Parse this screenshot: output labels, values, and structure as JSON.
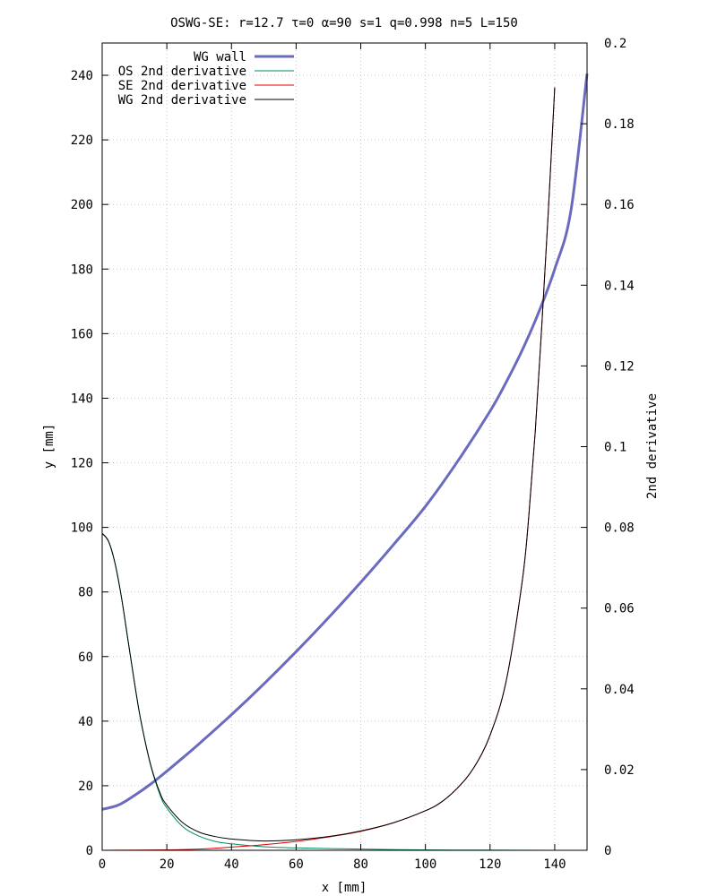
{
  "chart_data": {
    "type": "line",
    "title": "OSWG-SE: r=12.7 τ=0 α=90 s=1 q=0.998 n=5 L=150",
    "xlabel": "x [mm]",
    "ylabel": "y [mm]",
    "y2label": "2nd derivative",
    "xlim": [
      0,
      150
    ],
    "ylim": [
      0,
      250
    ],
    "y2lim": [
      0,
      0.2
    ],
    "xticks": [
      0,
      20,
      40,
      60,
      80,
      100,
      120,
      140
    ],
    "yticks": [
      0,
      20,
      40,
      60,
      80,
      100,
      120,
      140,
      160,
      180,
      200,
      220,
      240
    ],
    "y2ticks": [
      0,
      0.02,
      0.04,
      0.06,
      0.08,
      0.1,
      0.12,
      0.14,
      0.16,
      0.18,
      0.2
    ],
    "xtick_labels": [
      "0",
      "20",
      "40",
      "60",
      "80",
      "100",
      "120",
      "140"
    ],
    "ytick_labels": [
      "0",
      "20",
      "40",
      "60",
      "80",
      "100",
      "120",
      "140",
      "160",
      "180",
      "200",
      "220",
      "240"
    ],
    "y2tick_labels": [
      "0",
      "0.02",
      "0.04",
      "0.06",
      "0.08",
      "0.1",
      "0.12",
      "0.14",
      "0.16",
      "0.18",
      "0.2"
    ],
    "grid": true,
    "legend_position": "top-left",
    "series": [
      {
        "name": "WG wall",
        "axis": "y",
        "color": "#6a6abf",
        "x": [
          0,
          5,
          10,
          15,
          20,
          25,
          30,
          40,
          50,
          60,
          70,
          80,
          90,
          100,
          110,
          120,
          125,
          130,
          135,
          140,
          145,
          150
        ],
        "y": [
          12.7,
          14.0,
          17.0,
          20.5,
          24.5,
          28.7,
          33.0,
          42.0,
          51.5,
          61.5,
          72.0,
          83.0,
          94.5,
          106.5,
          120.5,
          136.0,
          145.0,
          155.0,
          166.5,
          180.0,
          198.0,
          240.5
        ]
      },
      {
        "name": "OS 2nd derivative",
        "axis": "y2",
        "color": "#008b60",
        "x": [
          0,
          2,
          4,
          6,
          8,
          10,
          12,
          15,
          18,
          20,
          25,
          30,
          35,
          40,
          50,
          60,
          80,
          100,
          120,
          140
        ],
        "y": [
          0.0785,
          0.0765,
          0.071,
          0.0625,
          0.052,
          0.0415,
          0.032,
          0.021,
          0.0135,
          0.0105,
          0.0058,
          0.0035,
          0.0022,
          0.0016,
          0.0009,
          0.0006,
          0.0003,
          0.0001,
          5e-05,
          0.0
        ]
      },
      {
        "name": "SE 2nd derivative",
        "axis": "y2",
        "color": "#e00000",
        "x": [
          0,
          20,
          30,
          40,
          50,
          60,
          70,
          80,
          90,
          100,
          105,
          110,
          115,
          120,
          125,
          130,
          132,
          134,
          136,
          138,
          140
        ],
        "y": [
          0.0,
          0.0001,
          0.0003,
          0.0008,
          0.0014,
          0.0022,
          0.0033,
          0.0047,
          0.0068,
          0.0098,
          0.012,
          0.0155,
          0.0205,
          0.0285,
          0.042,
          0.067,
          0.083,
          0.104,
          0.13,
          0.158,
          0.189
        ]
      },
      {
        "name": "WG 2nd derivative",
        "axis": "y2",
        "color": "#000000",
        "x": [
          0,
          2,
          4,
          6,
          8,
          10,
          12,
          15,
          18,
          20,
          25,
          30,
          35,
          40,
          50,
          60,
          70,
          80,
          90,
          100,
          105,
          110,
          115,
          120,
          125,
          130,
          132,
          134,
          136,
          138,
          140
        ],
        "y": [
          0.0785,
          0.0765,
          0.071,
          0.0625,
          0.052,
          0.0415,
          0.032,
          0.0212,
          0.014,
          0.0112,
          0.0068,
          0.0045,
          0.0034,
          0.0028,
          0.0023,
          0.0026,
          0.0034,
          0.0048,
          0.0068,
          0.0098,
          0.012,
          0.0155,
          0.0205,
          0.0285,
          0.042,
          0.067,
          0.083,
          0.104,
          0.13,
          0.158,
          0.189
        ]
      }
    ]
  }
}
